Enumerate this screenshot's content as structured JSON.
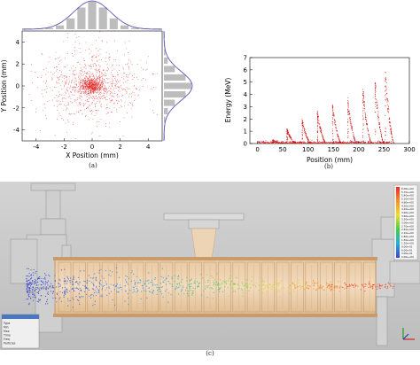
{
  "captions": {
    "a": "(a)",
    "b": "(b)",
    "c": "(c)"
  },
  "chart_data": [
    {
      "type": "scatter",
      "xlabel": "X Position (mm)",
      "ylabel": "Y Position (mm)",
      "xlim": [
        -5,
        5
      ],
      "ylim": [
        -5,
        5
      ],
      "xticks": [
        "-4",
        "-2",
        "0",
        "2",
        "4"
      ],
      "yticks": [
        "4",
        "2",
        "0",
        "-2",
        "-4"
      ],
      "xtick_values": [
        -4,
        -2,
        0,
        2,
        4
      ],
      "ytick_values": [
        4,
        2,
        0,
        -2,
        -4
      ],
      "marginals": "histograms with gaussian fit on top and right",
      "center": [
        0,
        0
      ],
      "spread_sigma_mm": 1.1,
      "point_color": "#e02020",
      "fit_color": "#5a5ab8"
    },
    {
      "type": "scatter",
      "xlabel": "Position (mm)",
      "ylabel": "Energy (MeV)",
      "xlim": [
        -15,
        300
      ],
      "ylim": [
        0,
        7
      ],
      "xticks": [
        "0",
        "50",
        "100",
        "150",
        "200",
        "250",
        "300"
      ],
      "yticks": [
        "0",
        "1",
        "2",
        "3",
        "4",
        "5",
        "6",
        "7"
      ],
      "xtick_values": [
        0,
        50,
        100,
        150,
        200,
        250,
        300
      ],
      "ytick_values": [
        0,
        1,
        2,
        3,
        4,
        5,
        6,
        7
      ],
      "peak_positions": [
        30,
        58,
        88,
        118,
        148,
        178,
        208,
        232,
        252
      ],
      "peak_energies": [
        0.3,
        1.2,
        1.9,
        2.5,
        3.1,
        3.7,
        4.3,
        5.0,
        6.0
      ],
      "point_color": "#d01818"
    }
  ],
  "simulation": {
    "legend_values": [
      "6.00e+00",
      "5.70e+00",
      "5.40e+00",
      "5.10e+00",
      "4.80e+00",
      "4.50e+00",
      "4.20e+00",
      "3.90e+00",
      "3.60e+00",
      "3.30e+00",
      "3.00e+00",
      "2.70e+00",
      "2.40e+00",
      "2.10e+00",
      "1.80e+00",
      "1.50e+00",
      "1.20e+00",
      "9.00e-01",
      "6.00e-01",
      "3.00e-01",
      "0.00e+00"
    ],
    "info_lines": [
      "Type",
      "Min",
      "Max",
      "Time",
      "Freq",
      "Particles"
    ]
  }
}
